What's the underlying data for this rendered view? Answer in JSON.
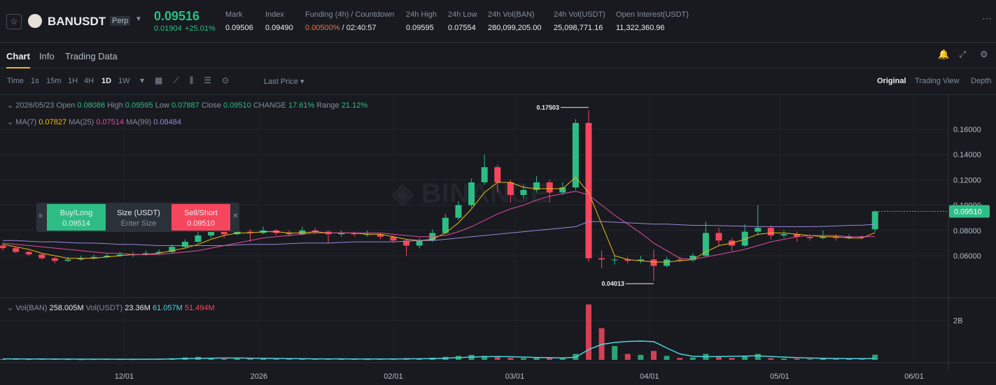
{
  "header": {
    "symbol": "BANUSDT",
    "contract": "Perp",
    "price": "0.09516",
    "change": "0.01904",
    "change_pct": "+25.01%",
    "stats": [
      {
        "label": "Mark",
        "value": "0.09506"
      },
      {
        "label": "Index",
        "value": "0.09490"
      },
      {
        "label": "Funding (4h) / Countdown",
        "value": "0.00500%",
        "extra": "/ 02:40:57"
      },
      {
        "label": "24h High",
        "value": "0.09595"
      },
      {
        "label": "24h Low",
        "value": "0.07554"
      },
      {
        "label": "24h Vol(BAN)",
        "value": "280,099,205.00"
      },
      {
        "label": "24h Vol(USDT)",
        "value": "25,098,771.16"
      },
      {
        "label": "Open Interest(USDT)",
        "value": "11,322,360.96"
      }
    ]
  },
  "tabs": [
    "Chart",
    "Info",
    "Trading Data"
  ],
  "toolbar": {
    "intervals": [
      "Time",
      "1s",
      "15m",
      "1H",
      "4H",
      "1D",
      "1W"
    ],
    "price_type": "Last Price",
    "views": [
      "Original",
      "Trading View",
      "Depth"
    ]
  },
  "legend": {
    "date": "2026/05/23",
    "open": "Open",
    "high": "High",
    "low": "Low",
    "close": "Close",
    "close_value": "0.09510",
    "change": "CHANGE",
    "change_value": "17.61%",
    "range": "Range",
    "range_value": "21.12%"
  },
  "volume_legend": {
    "vol_ban": "Vol(BAN)",
    "vol_ban_value": "258.005M",
    "vol_usdt": "Vol(USDT)",
    "vol_usdt_value": "23.36M",
    "ma1_value": "61.057M",
    "ma2_value": "51.494M"
  },
  "order_widget": {
    "buy": "Buy/Long",
    "buy_price": "0.09514",
    "size": "Size (USDT)",
    "size_placeholder": "Enter Size",
    "sell": "Sell/Short",
    "sell_price": "0.09510"
  },
  "last_price_label": "0.09510",
  "chart_data": {
    "type": "candlestick",
    "categories": [
      null,
      null,
      null,
      null,
      null,
      null,
      null,
      null,
      null,
      null,
      null,
      null,
      null,
      null,
      null,
      null,
      null,
      null,
      null,
      null,
      null,
      null,
      null,
      null,
      null,
      null,
      null,
      null,
      null,
      null,
      null,
      null,
      null,
      null,
      null,
      null,
      null,
      null,
      null,
      null,
      null,
      null,
      null,
      null,
      null,
      null,
      null,
      null,
      null,
      null,
      null,
      null,
      null,
      null,
      null,
      null,
      null,
      null,
      null,
      null,
      null,
      null,
      null,
      null,
      null,
      null,
      null,
      null
    ],
    "candles": [
      [
        0.068,
        0.07,
        0.064,
        0.066
      ],
      [
        0.066,
        0.067,
        0.062,
        0.063
      ],
      [
        0.063,
        0.064,
        0.06,
        0.061
      ],
      [
        0.061,
        0.062,
        0.057,
        0.058
      ],
      [
        0.058,
        0.059,
        0.054,
        0.056
      ],
      [
        0.056,
        0.059,
        0.055,
        0.057
      ],
      [
        0.057,
        0.06,
        0.056,
        0.058
      ],
      [
        0.058,
        0.061,
        0.057,
        0.059
      ],
      [
        0.059,
        0.062,
        0.058,
        0.06
      ],
      [
        0.06,
        0.063,
        0.059,
        0.061
      ],
      [
        0.0605,
        0.063,
        0.059,
        0.061
      ],
      [
        0.061,
        0.064,
        0.06,
        0.062
      ],
      [
        0.062,
        0.065,
        0.061,
        0.063
      ],
      [
        0.063,
        0.069,
        0.062,
        0.067
      ],
      [
        0.067,
        0.073,
        0.066,
        0.071
      ],
      [
        0.071,
        0.079,
        0.07,
        0.076
      ],
      [
        0.076,
        0.083,
        0.074,
        0.079
      ],
      [
        0.079,
        0.081,
        0.074,
        0.077
      ],
      [
        0.077,
        0.082,
        0.076,
        0.079
      ],
      [
        0.079,
        0.081,
        0.071,
        0.078
      ],
      [
        0.078,
        0.083,
        0.077,
        0.08
      ],
      [
        0.08,
        0.081,
        0.076,
        0.078
      ],
      [
        0.078,
        0.08,
        0.075,
        0.077
      ],
      [
        0.077,
        0.083,
        0.076,
        0.08
      ],
      [
        0.08,
        0.082,
        0.077,
        0.079
      ],
      [
        0.079,
        0.08,
        0.07,
        0.077
      ],
      [
        0.077,
        0.08,
        0.075,
        0.078
      ],
      [
        0.078,
        0.079,
        0.075,
        0.077
      ],
      [
        0.0765,
        0.08,
        0.075,
        0.077
      ],
      [
        0.077,
        0.078,
        0.073,
        0.075
      ],
      [
        0.075,
        0.076,
        0.07,
        0.072
      ],
      [
        0.072,
        0.073,
        0.06,
        0.068
      ],
      [
        0.068,
        0.074,
        0.066,
        0.072
      ],
      [
        0.072,
        0.081,
        0.071,
        0.078
      ],
      [
        0.078,
        0.093,
        0.077,
        0.09
      ],
      [
        0.09,
        0.103,
        0.088,
        0.1
      ],
      [
        0.1,
        0.121,
        0.098,
        0.118
      ],
      [
        0.118,
        0.14,
        0.116,
        0.13
      ],
      [
        0.13,
        0.132,
        0.11,
        0.118
      ],
      [
        0.118,
        0.12,
        0.102,
        0.108
      ],
      [
        0.108,
        0.116,
        0.105,
        0.112
      ],
      [
        0.112,
        0.123,
        0.11,
        0.118
      ],
      [
        0.118,
        0.12,
        0.102,
        0.11
      ],
      [
        0.11,
        0.118,
        0.108,
        0.114
      ],
      [
        0.114,
        0.168,
        0.112,
        0.165
      ],
      [
        0.165,
        0.17503,
        0.055,
        0.058
      ],
      [
        0.058,
        0.064,
        0.05,
        0.057
      ],
      [
        0.0565,
        0.06,
        0.053,
        0.057
      ],
      [
        0.057,
        0.059,
        0.054,
        0.056
      ],
      [
        0.056,
        0.06,
        0.054,
        0.057
      ],
      [
        0.057,
        0.065,
        0.04013,
        0.052
      ],
      [
        0.052,
        0.059,
        0.051,
        0.057
      ],
      [
        0.057,
        0.059,
        0.055,
        0.0565
      ],
      [
        0.0565,
        0.062,
        0.055,
        0.06
      ],
      [
        0.06,
        0.087,
        0.059,
        0.078
      ],
      [
        0.078,
        0.082,
        0.068,
        0.072
      ],
      [
        0.072,
        0.074,
        0.064,
        0.068
      ],
      [
        0.068,
        0.085,
        0.067,
        0.079
      ],
      [
        0.079,
        0.1,
        0.076,
        0.082
      ],
      [
        0.082,
        0.084,
        0.073,
        0.076
      ],
      [
        0.076,
        0.08,
        0.074,
        0.077
      ],
      [
        0.077,
        0.079,
        0.071,
        0.075
      ],
      [
        0.075,
        0.077,
        0.072,
        0.074
      ],
      [
        0.074,
        0.08,
        0.073,
        0.075
      ],
      [
        0.075,
        0.077,
        0.072,
        0.074
      ],
      [
        0.074,
        0.077,
        0.073,
        0.075
      ],
      [
        0.075,
        0.076,
        0.073,
        0.0745
      ],
      [
        0.08086,
        0.09595,
        0.07887,
        0.0951
      ]
    ],
    "up_color": "#2ebd85",
    "down_color": "#f6465d",
    "series": [
      {
        "name": "MA(7)",
        "color": "#f0b90b",
        "values": [
          0.069,
          0.067,
          0.065,
          0.062,
          0.06,
          0.058,
          0.058,
          0.058,
          0.059,
          0.06,
          0.061,
          0.061,
          0.062,
          0.064,
          0.066,
          0.069,
          0.073,
          0.076,
          0.078,
          0.078,
          0.079,
          0.079,
          0.078,
          0.078,
          0.079,
          0.078,
          0.078,
          0.078,
          0.077,
          0.077,
          0.075,
          0.073,
          0.072,
          0.073,
          0.078,
          0.086,
          0.097,
          0.11,
          0.118,
          0.118,
          0.114,
          0.113,
          0.113,
          0.113,
          0.122,
          0.11,
          0.085,
          0.06,
          0.057,
          0.056,
          0.055,
          0.055,
          0.056,
          0.057,
          0.063,
          0.068,
          0.07,
          0.073,
          0.077,
          0.078,
          0.078,
          0.077,
          0.076,
          0.075,
          0.075,
          0.074,
          0.074,
          0.07827
        ]
      },
      {
        "name": "MA(25)",
        "color": "#e04ca0",
        "values": [
          0.07,
          0.069,
          0.068,
          0.067,
          0.066,
          0.065,
          0.064,
          0.063,
          0.062,
          0.062,
          0.061,
          0.061,
          0.061,
          0.062,
          0.063,
          0.064,
          0.066,
          0.068,
          0.07,
          0.072,
          0.074,
          0.075,
          0.076,
          0.077,
          0.078,
          0.078,
          0.078,
          0.078,
          0.078,
          0.078,
          0.077,
          0.076,
          0.075,
          0.075,
          0.076,
          0.079,
          0.083,
          0.088,
          0.093,
          0.097,
          0.1,
          0.104,
          0.107,
          0.109,
          0.111,
          0.108,
          0.1,
          0.092,
          0.085,
          0.078,
          0.07,
          0.064,
          0.058,
          0.057,
          0.059,
          0.061,
          0.063,
          0.065,
          0.068,
          0.071,
          0.073,
          0.075,
          0.076,
          0.076,
          0.076,
          0.075,
          0.075,
          0.07514
        ]
      },
      {
        "name": "MA(99)",
        "color": "#9a87d8",
        "values": [
          0.072,
          0.072,
          0.0715,
          0.071,
          0.071,
          0.0705,
          0.07,
          0.07,
          0.0695,
          0.069,
          0.069,
          0.0685,
          0.068,
          0.068,
          0.068,
          0.068,
          0.068,
          0.068,
          0.0685,
          0.069,
          0.069,
          0.069,
          0.0695,
          0.07,
          0.07,
          0.07,
          0.0705,
          0.071,
          0.071,
          0.071,
          0.071,
          0.0715,
          0.072,
          0.072,
          0.073,
          0.074,
          0.075,
          0.076,
          0.077,
          0.078,
          0.079,
          0.08,
          0.081,
          0.082,
          0.083,
          0.087,
          0.087,
          0.0865,
          0.086,
          0.0855,
          0.085,
          0.085,
          0.0845,
          0.084,
          0.084,
          0.0838,
          0.0835,
          0.0833,
          0.083,
          0.083,
          0.083,
          0.083,
          0.083,
          0.0832,
          0.0835,
          0.084,
          0.0842,
          0.08484
        ]
      }
    ],
    "volumes": [
      40000000,
      35000000,
      30000000,
      45000000,
      50000000,
      30000000,
      25000000,
      30000000,
      35000000,
      30000000,
      30000000,
      35000000,
      40000000,
      80000000,
      120000000,
      150000000,
      100000000,
      60000000,
      70000000,
      90000000,
      50000000,
      45000000,
      40000000,
      60000000,
      45000000,
      70000000,
      40000000,
      35000000,
      30000000,
      40000000,
      50000000,
      90000000,
      70000000,
      110000000,
      150000000,
      200000000,
      250000000,
      200000000,
      140000000,
      100000000,
      90000000,
      110000000,
      100000000,
      80000000,
      300000000,
      2800000000,
      1600000000,
      700000000,
      300000000,
      250000000,
      450000000,
      200000000,
      100000000,
      120000000,
      300000000,
      150000000,
      100000000,
      200000000,
      300000000,
      90000000,
      70000000,
      60000000,
      50000000,
      60000000,
      50000000,
      45000000,
      50000000,
      258005000
    ],
    "volume_ma": {
      "color": "#4fd3e0",
      "values": [
        50000000,
        48000000,
        45000000,
        42000000,
        40000000,
        38000000,
        36000000,
        35000000,
        34000000,
        33000000,
        33000000,
        33000000,
        34000000,
        45000000,
        60000000,
        75000000,
        85000000,
        90000000,
        90000000,
        85000000,
        80000000,
        70000000,
        60000000,
        55000000,
        50000000,
        50000000,
        48000000,
        46000000,
        44000000,
        44000000,
        45000000,
        50000000,
        55000000,
        65000000,
        85000000,
        110000000,
        140000000,
        160000000,
        165000000,
        160000000,
        140000000,
        120000000,
        110000000,
        100000000,
        130000000,
        520000000,
        780000000,
        880000000,
        930000000,
        950000000,
        920000000,
        600000000,
        300000000,
        180000000,
        160000000,
        170000000,
        180000000,
        190000000,
        200000000,
        170000000,
        140000000,
        110000000,
        90000000,
        80000000,
        70000000,
        65000000,
        62000000,
        61057000
      ]
    },
    "ylim": [
      0.0274,
      0.1876
    ],
    "yticks": [
      {
        "value": 0.06,
        "label": "0.06000"
      },
      {
        "value": 0.08,
        "label": "0.08000"
      },
      {
        "value": 0.1,
        "label": "0.10000"
      },
      {
        "value": 0.12,
        "label": "0.12000"
      },
      {
        "value": 0.14,
        "label": "0.14000"
      },
      {
        "value": 0.16,
        "label": "0.16000"
      }
    ],
    "vol_ylim": [
      0,
      3000000000
    ],
    "vol_yticks": [
      {
        "value": 2000000000,
        "label": "2B"
      }
    ],
    "xticks": [
      {
        "value": 9.33,
        "label": "12/01"
      },
      {
        "value": 19.67,
        "label": "2026"
      },
      {
        "value": 30,
        "label": "02/01"
      },
      {
        "value": 39.33,
        "label": "03/01"
      },
      {
        "value": 49.67,
        "label": "04/01"
      },
      {
        "value": 59.67,
        "label": "05/01"
      },
      {
        "value": 70,
        "label": "06/01"
      }
    ],
    "grid": true
  }
}
